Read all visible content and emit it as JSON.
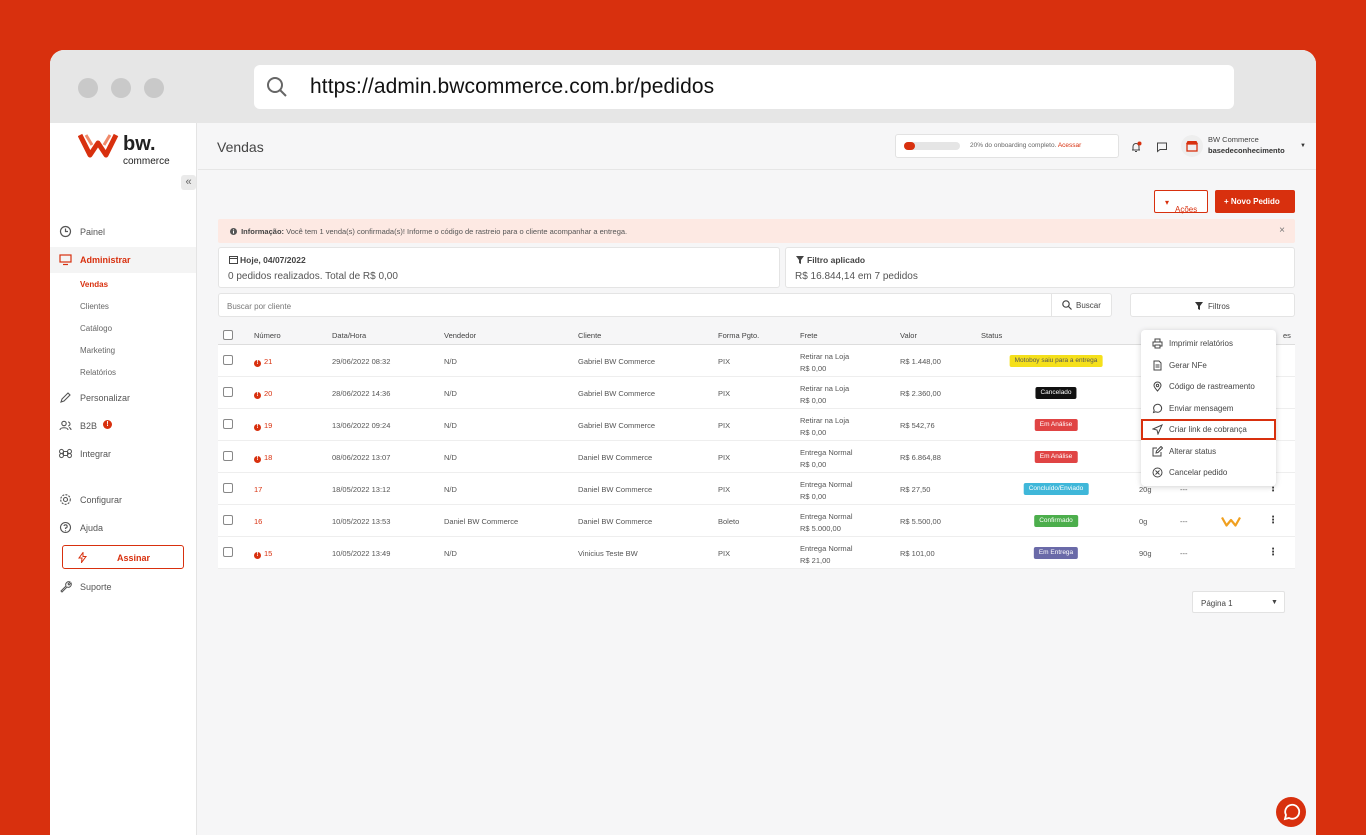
{
  "browser": {
    "url": "https://admin.bwcommerce.com.br/pedidos"
  },
  "logo": {
    "name": "bw.",
    "sub": "commerce"
  },
  "sidebar": {
    "items": [
      {
        "label": "Painel",
        "icon": "clock-icon"
      },
      {
        "label": "Administrar",
        "icon": "monitor-icon"
      },
      {
        "label": "Personalizar",
        "icon": "pencil-icon"
      },
      {
        "label": "B2B",
        "icon": "users-icon",
        "badge": "!"
      },
      {
        "label": "Integrar",
        "icon": "command-icon"
      },
      {
        "label": "Configurar",
        "icon": "gear-icon"
      },
      {
        "label": "Ajuda",
        "icon": "help-icon"
      },
      {
        "label": "Suporte",
        "icon": "wrench-icon"
      }
    ],
    "subitems": [
      "Vendas",
      "Clientes",
      "Catálogo",
      "Marketing",
      "Relatórios"
    ],
    "assinar": "Assinar",
    "collapse": "«"
  },
  "topbar": {
    "title": "Vendas",
    "onboarding_progress": 0.2,
    "onboarding_text": "20% do onboarding completo.",
    "onboarding_link": "Acessar",
    "user_line1": "BW Commerce",
    "user_line2": "basedeconhecimento"
  },
  "actions": {
    "acoes": "Ações",
    "novo": "+ Novo Pedido"
  },
  "alert": {
    "title": "Informação:",
    "text": " Você tem 1 venda(s) confirmada(s)! Informe o código de rastreio para o cliente acompanhar a entrega.",
    "close": "×"
  },
  "cards": {
    "today_title": "Hoje, 04/07/2022",
    "today_value": "0 pedidos realizados. Total de R$ 0,00",
    "filter_title": "Filtro aplicado",
    "filter_value": "R$ 16.844,14 em 7 pedidos"
  },
  "search": {
    "placeholder": "Buscar por cliente",
    "button": "Buscar",
    "filters": "Filtros"
  },
  "table": {
    "headers": [
      "Número",
      "Data/Hora",
      "Vendedor",
      "Cliente",
      "Forma Pgto.",
      "Frete",
      "Valor",
      "Status",
      "es"
    ],
    "rows": [
      {
        "num": "21",
        "alert": true,
        "date": "29/06/2022 08:32",
        "seller": "N/D",
        "client": "Gabriel BW Commerce",
        "pay": "PIX",
        "ship1": "Retirar na Loja",
        "ship2": "R$ 0,00",
        "value": "R$ 1.448,00",
        "status": "Motoboy saiu para a entrega",
        "status_color": "#f5e01b",
        "status_text": "#555",
        "weight": "",
        "dash": "",
        "logo": false
      },
      {
        "num": "20",
        "alert": true,
        "date": "28/06/2022 14:36",
        "seller": "N/D",
        "client": "Gabriel BW Commerce",
        "pay": "PIX",
        "ship1": "Retirar na Loja",
        "ship2": "R$ 0,00",
        "value": "R$ 2.360,00",
        "status": "Cancelado",
        "status_color": "#111111",
        "status_text": "#fff",
        "weight": "",
        "dash": "",
        "logo": false
      },
      {
        "num": "19",
        "alert": true,
        "date": "13/06/2022 09:24",
        "seller": "N/D",
        "client": "Gabriel BW Commerce",
        "pay": "PIX",
        "ship1": "Retirar na Loja",
        "ship2": "R$ 0,00",
        "value": "R$ 542,76",
        "status": "Em Análise",
        "status_color": "#e04444",
        "status_text": "#fff",
        "weight": "",
        "dash": "",
        "logo": false
      },
      {
        "num": "18",
        "alert": true,
        "date": "08/06/2022 13:07",
        "seller": "N/D",
        "client": "Daniel BW Commerce",
        "pay": "PIX",
        "ship1": "Entrega Normal",
        "ship2": "R$ 0,00",
        "value": "R$ 6.864,88",
        "status": "Em Análise",
        "status_color": "#e04444",
        "status_text": "#fff",
        "weight": "",
        "dash": "",
        "logo": false
      },
      {
        "num": "17",
        "alert": false,
        "date": "18/05/2022 13:12",
        "seller": "N/D",
        "client": "Daniel BW Commerce",
        "pay": "PIX",
        "ship1": "Entrega Normal",
        "ship2": "R$ 0,00",
        "value": "R$ 27,50",
        "status": "Concluído/Enviado",
        "status_color": "#3fb7d9",
        "status_text": "#fff",
        "weight": "20g",
        "dash": "---",
        "logo": false
      },
      {
        "num": "16",
        "alert": false,
        "date": "10/05/2022 13:53",
        "seller": "Daniel BW Commerce",
        "client": "Daniel BW Commerce",
        "pay": "Boleto",
        "ship1": "Entrega Normal",
        "ship2": "R$ 5.000,00",
        "value": "R$ 5.500,00",
        "status": "Confirmado",
        "status_color": "#4cae4c",
        "status_text": "#fff",
        "weight": "0g",
        "dash": "---",
        "logo": true
      },
      {
        "num": "15",
        "alert": true,
        "date": "10/05/2022 13:49",
        "seller": "N/D",
        "client": "Vinicius Teste BW",
        "pay": "PIX",
        "ship1": "Entrega Normal",
        "ship2": "R$ 21,00",
        "value": "R$ 101,00",
        "status": "Em Entrega",
        "status_color": "#6a6aa8",
        "status_text": "#fff",
        "weight": "90g",
        "dash": "---",
        "logo": false
      }
    ]
  },
  "context_menu": [
    {
      "label": "Imprimir relatórios",
      "icon": "printer-icon"
    },
    {
      "label": "Gerar NFe",
      "icon": "document-icon"
    },
    {
      "label": "Código de rastreamento",
      "icon": "location-pin-icon"
    },
    {
      "label": "Enviar mensagem",
      "icon": "whatsapp-icon"
    },
    {
      "label": "Criar link de cobrança",
      "icon": "send-icon",
      "highlighted": true
    },
    {
      "label": "Alterar status",
      "icon": "edit-icon"
    },
    {
      "label": "Cancelar pedido",
      "icon": "cancel-circle-icon"
    }
  ],
  "pager": {
    "label": "Página 1"
  },
  "colors": {
    "brand": "#d8300e",
    "background": "#f6f6f7"
  }
}
